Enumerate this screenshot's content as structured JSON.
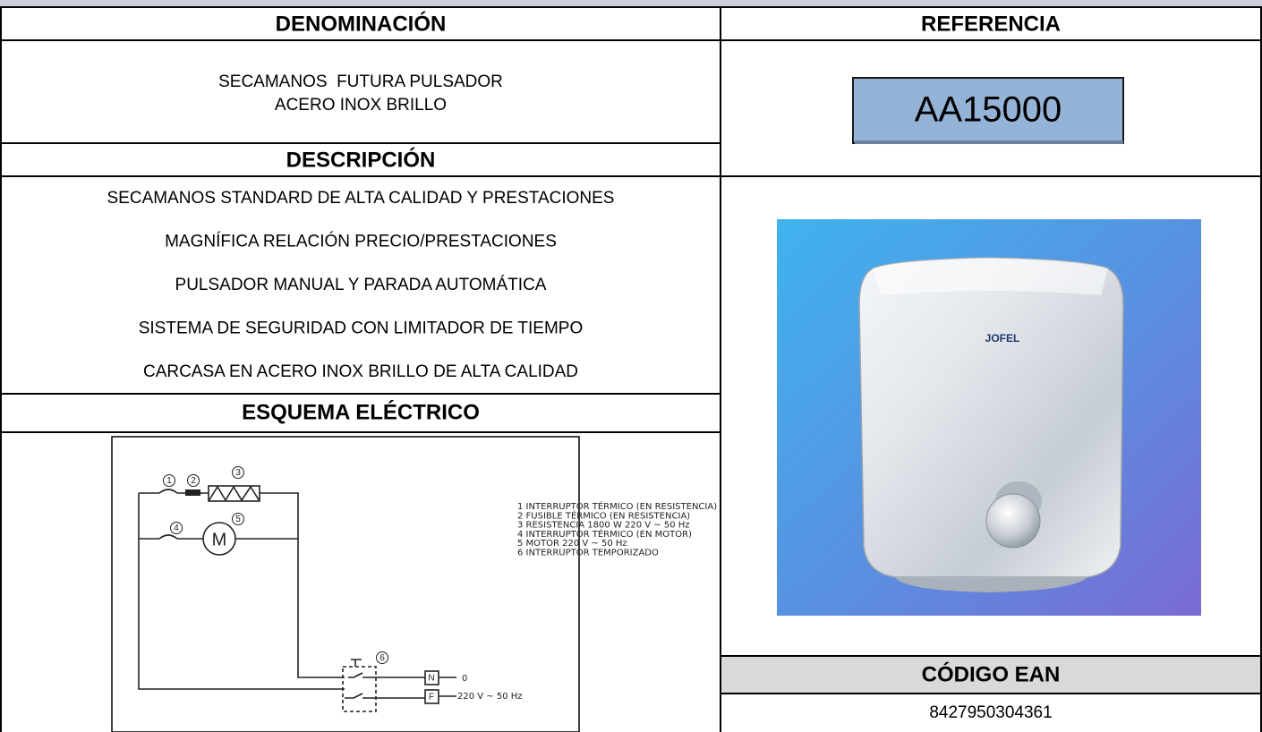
{
  "header": {
    "denominacion_label": "DENOMINACIÓN",
    "referencia_label": "REFERENCIA"
  },
  "product": {
    "name_lines": [
      "SECAMANOS  FUTURA PULSADOR",
      "ACERO INOX BRILLO"
    ],
    "reference": "AA15000"
  },
  "description": {
    "title": "DESCRIPCIÓN",
    "lines": [
      "SECAMANOS STANDARD DE ALTA CALIDAD Y PRESTACIONES",
      "MAGNÍFICA RELACIÓN PRECIO/PRESTACIONES",
      "PULSADOR MANUAL Y PARADA AUTOMÁTICA",
      "SISTEMA DE SEGURIDAD CON LIMITADOR DE TIEMPO",
      "CARCASA EN ACERO INOX BRILLO DE ALTA CALIDAD"
    ]
  },
  "schematic": {
    "title": "ESQUEMA ELÉCTRICO",
    "legend": [
      "1  INTERRUPTOR TÉRMICO (EN RESISTENCIA)",
      "2  FUSIBLE TÉRMICO (EN RESISTENCIA)",
      "3  RESISTENCIA  1800 W  220 V ~ 50 Hz",
      "4  INTERRUPTOR TÉRMICO (EN MOTOR)",
      "5  MOTOR  220 V ~ 50 Hz",
      "6  INTERRUPTOR TEMPORIZADO"
    ],
    "markers": [
      "1",
      "2",
      "3",
      "4",
      "5",
      "6"
    ],
    "motor": "M",
    "terminals": [
      "N",
      "F"
    ],
    "supply": [
      "0",
      "220 V ~ 50 Hz"
    ]
  },
  "image": {
    "brand": "JOFEL"
  },
  "ean": {
    "title": "CÓDIGO EAN",
    "code": "8427950304361"
  }
}
